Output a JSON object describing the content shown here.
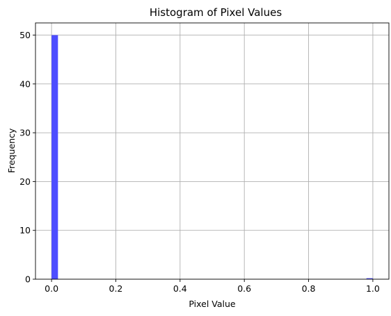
{
  "chart_data": {
    "type": "bar",
    "title": "Histogram of Pixel Values",
    "xlabel": "Pixel Value",
    "ylabel": "Frequency",
    "bin_edges": [
      0.0,
      0.02,
      0.04,
      0.06,
      0.08,
      0.1,
      0.12,
      0.14,
      0.16,
      0.18,
      0.2,
      0.22,
      0.24,
      0.26,
      0.28,
      0.3,
      0.32,
      0.34,
      0.36,
      0.38,
      0.4,
      0.42,
      0.44,
      0.46,
      0.48,
      0.5,
      0.52,
      0.54,
      0.56,
      0.58,
      0.6,
      0.62,
      0.64,
      0.66,
      0.68,
      0.7,
      0.72,
      0.74,
      0.76,
      0.78,
      0.8,
      0.82,
      0.84,
      0.86,
      0.88,
      0.9,
      0.92,
      0.94,
      0.96,
      0.98,
      1.0
    ],
    "values": [
      50,
      0,
      0,
      0,
      0,
      0,
      0,
      0,
      0,
      0,
      0,
      0,
      0,
      0,
      0,
      0,
      0,
      0,
      0,
      0,
      0,
      0,
      0,
      0,
      0,
      0,
      0,
      0,
      0,
      0,
      0,
      0,
      0,
      0,
      0,
      0,
      0,
      0,
      0,
      0,
      0,
      0,
      0,
      0,
      0,
      0,
      0,
      0,
      0,
      0.2
    ],
    "xlim": [
      -0.05,
      1.05
    ],
    "ylim": [
      0,
      52.5
    ],
    "xticks": [
      0.0,
      0.2,
      0.4,
      0.6,
      0.8,
      1.0
    ],
    "xtick_labels": [
      "0.0",
      "0.2",
      "0.4",
      "0.6",
      "0.8",
      "1.0"
    ],
    "yticks": [
      0,
      10,
      20,
      30,
      40,
      50
    ],
    "ytick_labels": [
      "0",
      "10",
      "20",
      "30",
      "40",
      "50"
    ],
    "grid": true,
    "bar_color": "#4d4dff",
    "grid_color": "#b0b0b0"
  }
}
